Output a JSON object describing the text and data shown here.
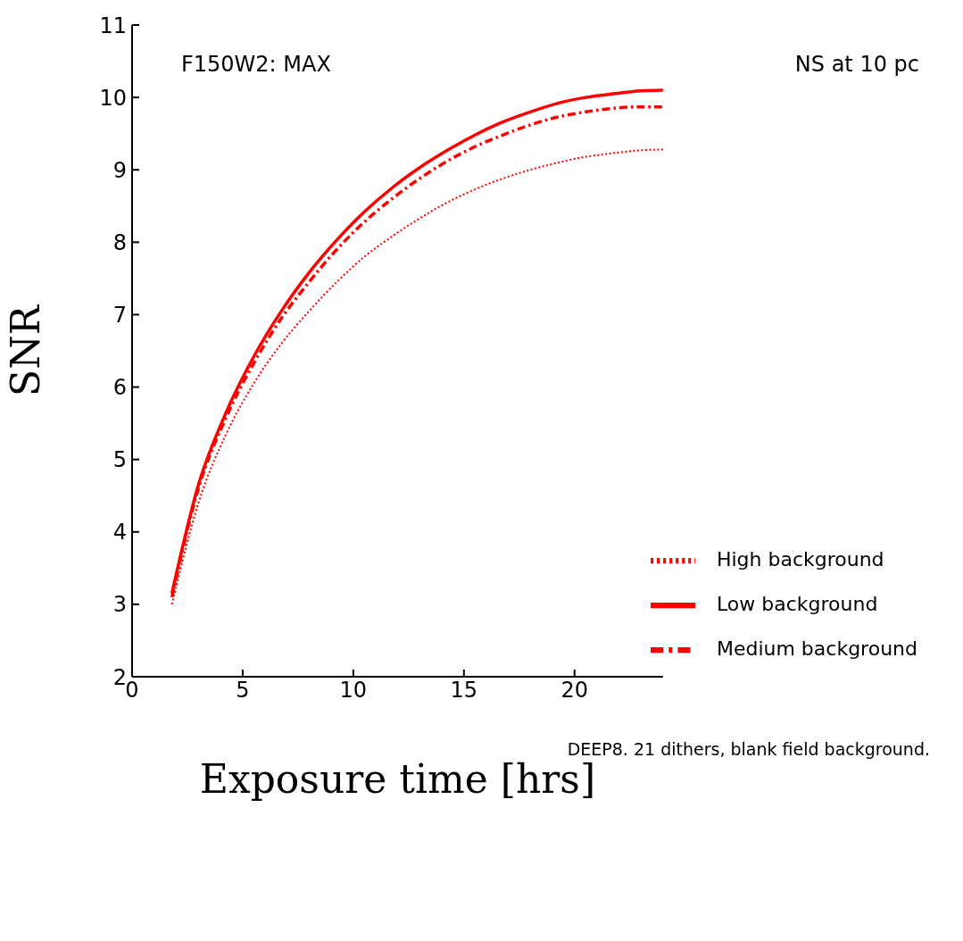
{
  "chart_data": {
    "type": "line",
    "xlabel": "Exposure time [hrs]",
    "ylabel": "SNR",
    "annotations": [
      "F150W2: MAX",
      "NS at 10 pc",
      "DEEP8. 21 dithers, blank field background."
    ],
    "x": [
      1.8,
      3,
      4.25,
      5.5,
      6.75,
      8,
      9.25,
      10.5,
      11.75,
      13,
      14.25,
      15.5,
      16.75,
      18,
      19.25,
      20.5,
      21.75,
      23,
      24
    ],
    "series": [
      {
        "name": "Low background",
        "color": "#ff0000",
        "line_style": "solid",
        "values": [
          3.15,
          4.65,
          5.65,
          6.42,
          7.05,
          7.58,
          8.03,
          8.42,
          8.75,
          9.03,
          9.27,
          9.48,
          9.66,
          9.8,
          9.92,
          10.0,
          10.05,
          10.09,
          10.1
        ]
      },
      {
        "name": "Medium background",
        "color": "#ff0000",
        "line_style": "dashdot",
        "values": [
          3.1,
          4.6,
          5.58,
          6.33,
          6.95,
          7.45,
          7.9,
          8.28,
          8.6,
          8.88,
          9.12,
          9.32,
          9.48,
          9.62,
          9.73,
          9.8,
          9.85,
          9.87,
          9.87
        ]
      },
      {
        "name": "High background",
        "color": "#ff0000",
        "line_style": "dotted",
        "values": [
          3.0,
          4.4,
          5.35,
          6.05,
          6.6,
          7.05,
          7.45,
          7.8,
          8.08,
          8.33,
          8.55,
          8.73,
          8.88,
          9.0,
          9.1,
          9.18,
          9.23,
          9.27,
          9.28
        ]
      }
    ],
    "xlim": [
      0,
      24
    ],
    "xticks": [
      0,
      5,
      10,
      15,
      20
    ],
    "ylim": [
      2,
      11
    ],
    "yticks": [
      2,
      3,
      4,
      5,
      6,
      7,
      8,
      9,
      10,
      11
    ],
    "grid": false,
    "legend": "bottom right",
    "marker": "none"
  }
}
